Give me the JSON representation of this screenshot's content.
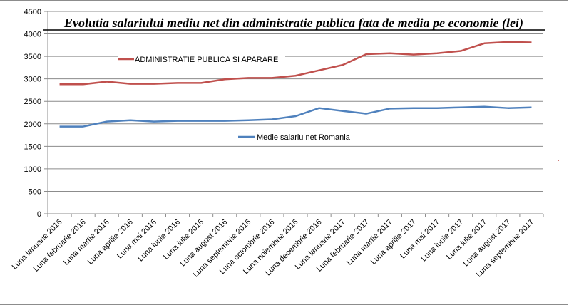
{
  "chart_data": {
    "type": "line",
    "title": "Evolutia salariului mediu net din administratie publica fata de media pe economie (lei)",
    "xlabel": "",
    "ylabel": "",
    "ylim": [
      0,
      4500
    ],
    "yticks": [
      0,
      500,
      1000,
      1500,
      2000,
      2500,
      3000,
      3500,
      4000,
      4500
    ],
    "grid": true,
    "categories": [
      "Luna ianuarie 2016",
      "Luna februarie 2016",
      "Luna martie 2016",
      "Luna aprilie 2016",
      "Luna mai 2016",
      "Luna iunie 2016",
      "Luna iulie 2016",
      "Luna august 2016",
      "Luna septembrie 2016",
      "Luna octombrie 2016",
      "Luna noiembrie 2016",
      "Luna decembrie 2016",
      "Luna ianuarie 2017",
      "Luna februarie 2017",
      "Luna martie 2017",
      "Luna aprilie 2017",
      "Luna mai 2017",
      "Luna iunie 2017",
      "Luna iulie 2017",
      "Luna august 2017",
      "Luna septembrie 2017"
    ],
    "series": [
      {
        "name": "ADMINISTRATIE  PUBLICA SI APARARE",
        "color": "#c0504d",
        "values": [
          2880,
          2880,
          2940,
          2890,
          2890,
          2910,
          2910,
          2990,
          3020,
          3020,
          3070,
          3190,
          3310,
          3550,
          3570,
          3540,
          3570,
          3620,
          3790,
          3820,
          3810
        ]
      },
      {
        "name": "Medie salariu  net Romania",
        "color": "#4f81bd",
        "values": [
          1940,
          1940,
          2050,
          2080,
          2050,
          2065,
          2065,
          2065,
          2080,
          2100,
          2170,
          2350,
          2285,
          2225,
          2340,
          2350,
          2350,
          2365,
          2380,
          2350,
          2365
        ]
      }
    ],
    "legend": "inline"
  }
}
